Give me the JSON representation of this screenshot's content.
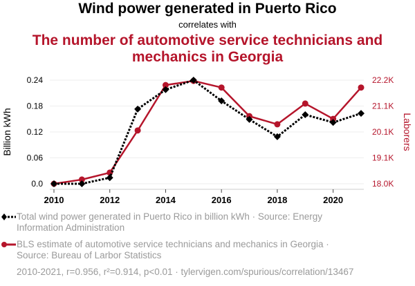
{
  "chart_data": {
    "type": "line",
    "title": "Wind power generated in Puerto Rico",
    "subtitle": "correlates with",
    "title2": "The number of automotive service technicians and mechanics in Georgia",
    "x": [
      2010,
      2011,
      2012,
      2013,
      2014,
      2015,
      2016,
      2017,
      2018,
      2019,
      2020,
      2021
    ],
    "x_ticks": [
      "2010",
      "2012",
      "2014",
      "2016",
      "2018",
      "2020"
    ],
    "x_tick_values": [
      2010,
      2012,
      2014,
      2016,
      2018,
      2020
    ],
    "xlim": [
      2010,
      2021
    ],
    "ylabel_left": "Billion kWh",
    "ylabel_right": "Laborers",
    "y_left_ticks": [
      "0.0",
      "0.06",
      "0.12",
      "0.18",
      "0.24"
    ],
    "y_left_tick_values": [
      0,
      0.06,
      0.12,
      0.18,
      0.24
    ],
    "ylim_left": [
      0,
      0.24
    ],
    "y_right_ticks": [
      "18.0K",
      "19.1K",
      "20.1K",
      "21.1K",
      "22.2K"
    ],
    "y_right_tick_values": [
      18000,
      19050,
      20100,
      21150,
      22200
    ],
    "ylim_right": [
      18000,
      22200
    ],
    "grid": true,
    "series": [
      {
        "name": "Total wind power generated in Puerto Rico in billion kWh · Source: Energy Information Administration",
        "axis": "left",
        "color": "#000000",
        "style": "dotted",
        "marker": "diamond",
        "values": [
          0.0,
          0.0,
          0.014,
          0.173,
          0.218,
          0.24,
          0.192,
          0.149,
          0.109,
          0.16,
          0.142,
          0.163
        ]
      },
      {
        "name": "BLS estimate of automotive service technicians and mechanics in Georgia · Source: Bureau of Larbor Statistics",
        "axis": "right",
        "color": "#b5152b",
        "style": "solid",
        "marker": "circle",
        "values": [
          18000,
          18170,
          18450,
          20160,
          22000,
          22170,
          21900,
          20740,
          20410,
          21250,
          20630,
          21900
        ]
      }
    ],
    "legend_position": "bottom",
    "footer": "2010-2021, r=0.956, r²=0.914, p<0.01 · tylervigen.com/spurious/correlation/13467"
  }
}
